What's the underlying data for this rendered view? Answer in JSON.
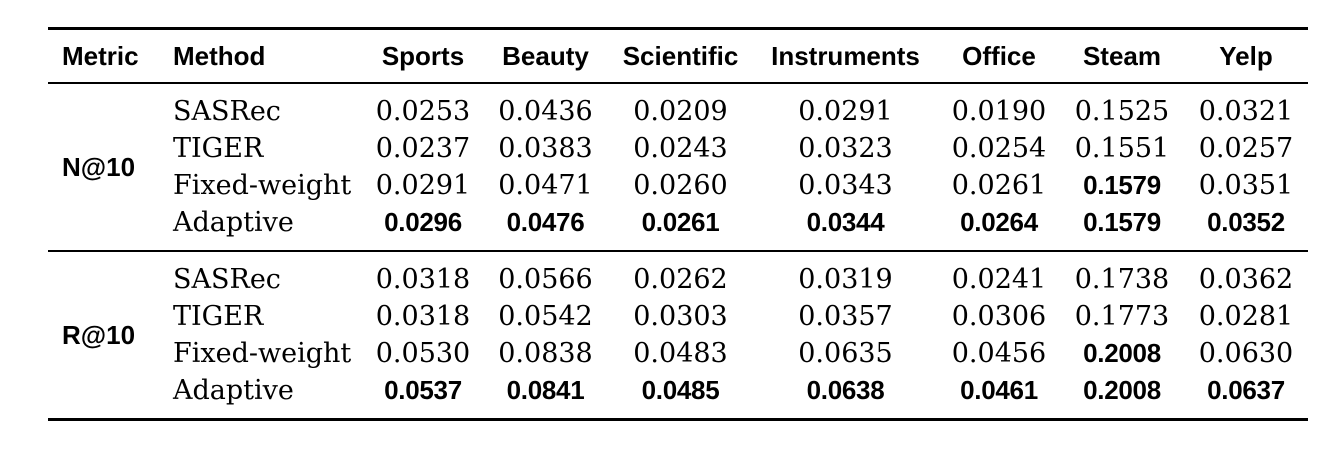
{
  "table": {
    "columns": [
      "Metric",
      "Method",
      "Sports",
      "Beauty",
      "Scientific",
      "Instruments",
      "Office",
      "Steam",
      "Yelp"
    ],
    "groups": [
      {
        "metric": "N@10",
        "rows": [
          {
            "method": "SASRec",
            "values": [
              "0.0253",
              "0.0436",
              "0.0209",
              "0.0291",
              "0.0190",
              "0.1525",
              "0.0321"
            ],
            "bold": [
              false,
              false,
              false,
              false,
              false,
              false,
              false
            ]
          },
          {
            "method": "TIGER",
            "values": [
              "0.0237",
              "0.0383",
              "0.0243",
              "0.0323",
              "0.0254",
              "0.1551",
              "0.0257"
            ],
            "bold": [
              false,
              false,
              false,
              false,
              false,
              false,
              false
            ]
          },
          {
            "method": "Fixed-weight",
            "values": [
              "0.0291",
              "0.0471",
              "0.0260",
              "0.0343",
              "0.0261",
              "0.1579",
              "0.0351"
            ],
            "bold": [
              false,
              false,
              false,
              false,
              false,
              true,
              false
            ]
          },
          {
            "method": "Adaptive",
            "values": [
              "0.0296",
              "0.0476",
              "0.0261",
              "0.0344",
              "0.0264",
              "0.1579",
              "0.0352"
            ],
            "bold": [
              true,
              true,
              true,
              true,
              true,
              true,
              true
            ]
          }
        ]
      },
      {
        "metric": "R@10",
        "rows": [
          {
            "method": "SASRec",
            "values": [
              "0.0318",
              "0.0566",
              "0.0262",
              "0.0319",
              "0.0241",
              "0.1738",
              "0.0362"
            ],
            "bold": [
              false,
              false,
              false,
              false,
              false,
              false,
              false
            ]
          },
          {
            "method": "TIGER",
            "values": [
              "0.0318",
              "0.0542",
              "0.0303",
              "0.0357",
              "0.0306",
              "0.1773",
              "0.0281"
            ],
            "bold": [
              false,
              false,
              false,
              false,
              false,
              false,
              false
            ]
          },
          {
            "method": "Fixed-weight",
            "values": [
              "0.0530",
              "0.0838",
              "0.0483",
              "0.0635",
              "0.0456",
              "0.2008",
              "0.0630"
            ],
            "bold": [
              false,
              false,
              false,
              false,
              false,
              true,
              false
            ]
          },
          {
            "method": "Adaptive",
            "values": [
              "0.0537",
              "0.0841",
              "0.0485",
              "0.0638",
              "0.0461",
              "0.2008",
              "0.0637"
            ],
            "bold": [
              true,
              true,
              true,
              true,
              true,
              true,
              true
            ]
          }
        ]
      }
    ],
    "colors": {
      "text": "#000000",
      "rule": "#000000",
      "background": "#ffffff"
    }
  }
}
